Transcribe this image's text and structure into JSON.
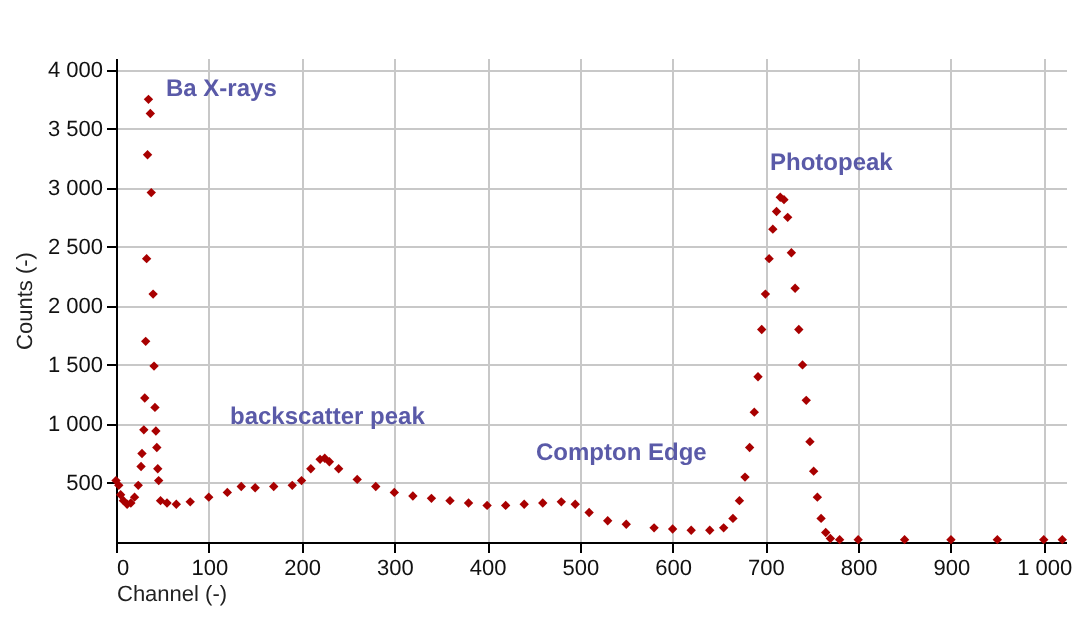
{
  "chart_data": {
    "type": "scatter",
    "xlabel": "Channel (-)",
    "ylabel": "Counts (-)",
    "xlim": [
      0,
      1024
    ],
    "ylim": [
      0,
      4100
    ],
    "xticks": [
      0,
      100,
      200,
      300,
      400,
      500,
      600,
      700,
      800,
      900,
      {
        "value": 1000,
        "label": "1 000"
      }
    ],
    "yticks": [
      500,
      {
        "value": 1000,
        "label": "1 000"
      },
      {
        "value": 1500,
        "label": "1 500"
      },
      {
        "value": 2000,
        "label": "2 000"
      },
      {
        "value": 2500,
        "label": "2 500"
      },
      {
        "value": 3000,
        "label": "3 000"
      },
      {
        "value": 3500,
        "label": "3 500"
      },
      {
        "value": 4000,
        "label": "4 000"
      }
    ],
    "grid": true,
    "marker": "diamond",
    "annotations": [
      "Ba X-rays",
      "backscatter peak",
      "Compton Edge",
      "Photopeak"
    ],
    "x": [
      0,
      3,
      5,
      8,
      12,
      16,
      20,
      24,
      27,
      28,
      30,
      31,
      32,
      33,
      34,
      35,
      37,
      38,
      40,
      41,
      42,
      43,
      44,
      45,
      46,
      48,
      55,
      65,
      80,
      100,
      120,
      135,
      150,
      170,
      190,
      200,
      210,
      220,
      225,
      230,
      240,
      260,
      280,
      300,
      320,
      340,
      360,
      380,
      400,
      420,
      440,
      460,
      480,
      495,
      510,
      530,
      550,
      580,
      600,
      620,
      640,
      655,
      665,
      672,
      678,
      683,
      688,
      692,
      696,
      700,
      704,
      708,
      712,
      716,
      720,
      724,
      728,
      732,
      736,
      740,
      744,
      748,
      752,
      756,
      760,
      765,
      770,
      780,
      800,
      850,
      900,
      950,
      1000,
      1020
    ],
    "series": [
      {
        "color": "#a80000",
        "values": [
          520,
          480,
          400,
          350,
          320,
          330,
          380,
          480,
          640,
          750,
          950,
          1220,
          1700,
          2400,
          3280,
          3750,
          3630,
          2960,
          2100,
          1490,
          1140,
          940,
          800,
          620,
          520,
          350,
          330,
          320,
          340,
          380,
          420,
          470,
          460,
          470,
          480,
          520,
          620,
          700,
          710,
          680,
          620,
          530,
          470,
          420,
          390,
          370,
          350,
          330,
          310,
          310,
          320,
          330,
          340,
          320,
          250,
          180,
          150,
          120,
          110,
          100,
          100,
          120,
          200,
          350,
          550,
          800,
          1100,
          1400,
          1800,
          2100,
          2400,
          2650,
          2800,
          2920,
          2900,
          2750,
          2450,
          2150,
          1800,
          1500,
          1200,
          850,
          600,
          380,
          200,
          80,
          30,
          20,
          20,
          20,
          20,
          20,
          20,
          20
        ]
      }
    ]
  }
}
